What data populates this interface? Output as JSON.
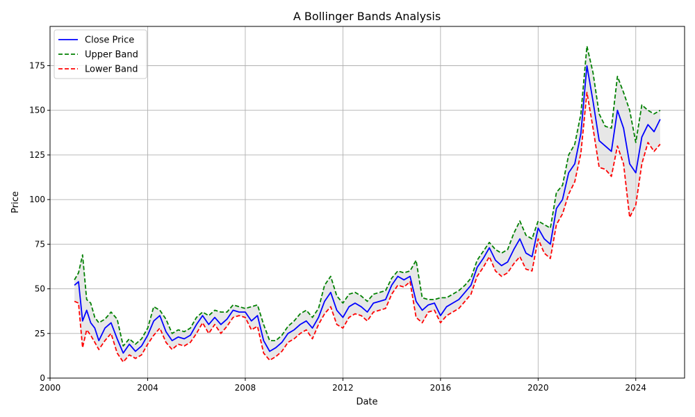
{
  "chart_data": {
    "type": "line",
    "title": "A Bollinger Bands Analysis",
    "xlabel": "Date",
    "ylabel": "Price",
    "xlim": [
      "2000-01-01",
      "2026-01-01"
    ],
    "ylim": [
      0,
      197
    ],
    "x_ticks": [
      "2000",
      "2004",
      "2008",
      "2012",
      "2016",
      "2020",
      "2024"
    ],
    "y_ticks": [
      0,
      25,
      50,
      75,
      100,
      125,
      150,
      175
    ],
    "grid": true,
    "legend_position": "top-left",
    "band_fill": "light-gray",
    "colors": {
      "Close Price": "#0000ff",
      "Upper Band": "#008000",
      "Lower Band": "#ff0000",
      "band_fill": "#d3d3d3"
    },
    "x": [
      "2001-01",
      "2001-03",
      "2001-05",
      "2001-07",
      "2001-09",
      "2001-11",
      "2002-01",
      "2002-04",
      "2002-07",
      "2002-10",
      "2003-01",
      "2003-04",
      "2003-07",
      "2003-10",
      "2004-01",
      "2004-04",
      "2004-07",
      "2004-10",
      "2005-01",
      "2005-04",
      "2005-07",
      "2005-10",
      "2006-01",
      "2006-04",
      "2006-07",
      "2006-10",
      "2007-01",
      "2007-04",
      "2007-07",
      "2007-10",
      "2008-01",
      "2008-04",
      "2008-07",
      "2008-10",
      "2009-01",
      "2009-04",
      "2009-07",
      "2009-10",
      "2010-01",
      "2010-04",
      "2010-07",
      "2010-10",
      "2011-01",
      "2011-04",
      "2011-07",
      "2011-10",
      "2012-01",
      "2012-04",
      "2012-07",
      "2012-10",
      "2013-01",
      "2013-04",
      "2013-07",
      "2013-10",
      "2014-01",
      "2014-04",
      "2014-07",
      "2014-10",
      "2015-01",
      "2015-04",
      "2015-07",
      "2015-10",
      "2016-01",
      "2016-04",
      "2016-07",
      "2016-10",
      "2017-01",
      "2017-04",
      "2017-07",
      "2017-10",
      "2018-01",
      "2018-04",
      "2018-07",
      "2018-10",
      "2019-01",
      "2019-04",
      "2019-07",
      "2019-10",
      "2020-01",
      "2020-04",
      "2020-07",
      "2020-10",
      "2021-01",
      "2021-04",
      "2021-07",
      "2021-10",
      "2022-01",
      "2022-04",
      "2022-07",
      "2022-10",
      "2023-01",
      "2023-04",
      "2023-07",
      "2023-10",
      "2024-01",
      "2024-04",
      "2024-07",
      "2024-10",
      "2025-01"
    ],
    "series": [
      {
        "name": "Close Price",
        "style": "solid",
        "values": [
          52,
          54,
          32,
          38,
          31,
          28,
          21,
          28,
          31,
          22,
          14,
          19,
          15,
          18,
          24,
          32,
          35,
          26,
          21,
          23,
          22,
          24,
          30,
          35,
          30,
          34,
          30,
          33,
          38,
          37,
          37,
          32,
          35,
          21,
          15,
          17,
          20,
          25,
          27,
          30,
          32,
          28,
          34,
          43,
          48,
          38,
          34,
          40,
          42,
          40,
          37,
          42,
          43,
          44,
          52,
          57,
          55,
          57,
          43,
          38,
          41,
          42,
          35,
          40,
          42,
          44,
          48,
          52,
          62,
          67,
          73,
          66,
          63,
          65,
          72,
          78,
          70,
          68,
          84,
          78,
          75,
          95,
          100,
          115,
          120,
          137,
          175,
          155,
          133,
          130,
          127,
          150,
          140,
          120,
          115,
          135,
          142,
          138,
          145
        ]
      },
      {
        "name": "Upper Band",
        "style": "dashed",
        "values": [
          55,
          59,
          69,
          44,
          42,
          34,
          31,
          33,
          37,
          33,
          18,
          22,
          19,
          22,
          28,
          40,
          38,
          33,
          25,
          27,
          26,
          28,
          34,
          37,
          35,
          38,
          37,
          37,
          41,
          40,
          39,
          40,
          41,
          30,
          21,
          21,
          24,
          29,
          32,
          36,
          38,
          34,
          39,
          52,
          57,
          46,
          42,
          47,
          48,
          46,
          43,
          47,
          48,
          49,
          56,
          60,
          59,
          60,
          66,
          45,
          44,
          44,
          45,
          45,
          47,
          49,
          52,
          56,
          66,
          71,
          76,
          72,
          70,
          72,
          81,
          88,
          80,
          78,
          88,
          86,
          84,
          104,
          108,
          125,
          131,
          148,
          186,
          171,
          148,
          141,
          140,
          169,
          160,
          150,
          132,
          153,
          150,
          148,
          150
        ]
      },
      {
        "name": "Lower Band",
        "style": "dashed",
        "values": [
          43,
          42,
          17,
          27,
          24,
          20,
          16,
          21,
          25,
          14,
          9,
          13,
          11,
          13,
          19,
          24,
          28,
          20,
          16,
          19,
          18,
          20,
          25,
          31,
          25,
          30,
          25,
          29,
          34,
          35,
          34,
          27,
          29,
          14,
          10,
          12,
          15,
          20,
          22,
          25,
          27,
          22,
          30,
          36,
          40,
          30,
          28,
          34,
          36,
          35,
          32,
          37,
          38,
          39,
          47,
          52,
          51,
          54,
          34,
          31,
          37,
          38,
          31,
          35,
          37,
          39,
          43,
          47,
          57,
          62,
          68,
          60,
          57,
          59,
          64,
          68,
          61,
          60,
          78,
          70,
          67,
          86,
          92,
          103,
          110,
          126,
          160,
          140,
          118,
          117,
          113,
          130,
          120,
          90,
          97,
          120,
          132,
          127,
          131
        ]
      }
    ]
  },
  "legend": {
    "items": [
      {
        "label": "Close Price",
        "color": "#0000ff",
        "dash": ""
      },
      {
        "label": "Upper Band",
        "color": "#008000",
        "dash": "6,3"
      },
      {
        "label": "Lower Band",
        "color": "#ff0000",
        "dash": "6,3"
      }
    ]
  }
}
